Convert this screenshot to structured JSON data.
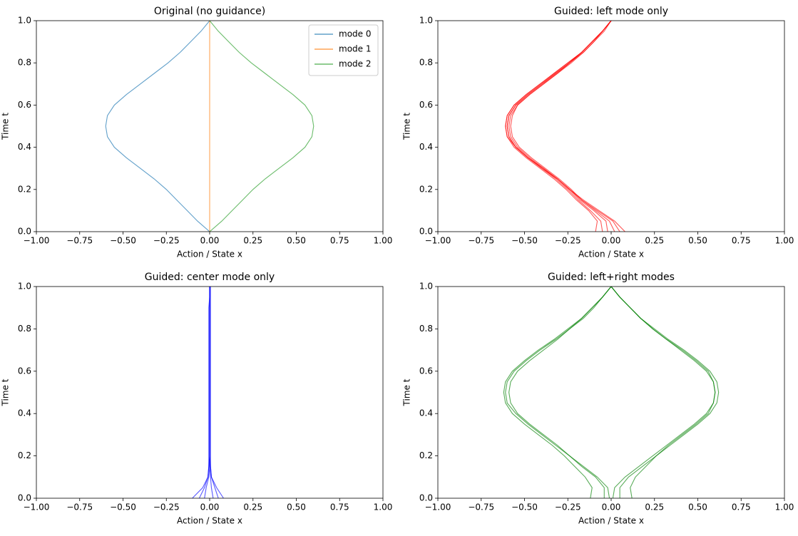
{
  "chart_data": [
    {
      "type": "line",
      "title": "Original (no guidance)",
      "xlabel": "Action / State x",
      "ylabel": "Time t",
      "xlim": [
        -1,
        1
      ],
      "ylim": [
        0,
        1
      ],
      "xticks": [
        {
          "value": -1,
          "label": "−1.00"
        },
        {
          "value": -0.75,
          "label": "−0.75"
        },
        {
          "value": -0.5,
          "label": "−0.50"
        },
        {
          "value": -0.25,
          "label": "−0.25"
        },
        {
          "value": 0,
          "label": "0.00"
        },
        {
          "value": 0.25,
          "label": "0.25"
        },
        {
          "value": 0.5,
          "label": "0.50"
        },
        {
          "value": 0.75,
          "label": "0.75"
        },
        {
          "value": 1,
          "label": "1.00"
        }
      ],
      "yticks": [
        {
          "value": 0,
          "label": "0.0"
        },
        {
          "value": 0.2,
          "label": "0.2"
        },
        {
          "value": 0.4,
          "label": "0.4"
        },
        {
          "value": 0.6,
          "label": "0.6"
        },
        {
          "value": 0.8,
          "label": "0.8"
        },
        {
          "value": 1,
          "label": "1.0"
        }
      ],
      "legend": "upper right",
      "y": [
        0,
        0.05,
        0.1,
        0.15,
        0.2,
        0.25,
        0.3,
        0.35,
        0.4,
        0.45,
        0.5,
        0.55,
        0.6,
        0.65,
        0.7,
        0.75,
        0.8,
        0.85,
        0.9,
        0.95,
        1
      ],
      "series": [
        {
          "name": "mode 0",
          "color": "#1f77b4",
          "x": [
            0,
            -0.07,
            -0.13,
            -0.19,
            -0.25,
            -0.32,
            -0.4,
            -0.48,
            -0.55,
            -0.59,
            -0.6,
            -0.59,
            -0.55,
            -0.48,
            -0.4,
            -0.32,
            -0.24,
            -0.17,
            -0.11,
            -0.05,
            0
          ]
        },
        {
          "name": "mode 1",
          "color": "#ff7f0e",
          "x": [
            0,
            0,
            0,
            0,
            0,
            0,
            0,
            0,
            0,
            0,
            0,
            0,
            0,
            0,
            0,
            0,
            0,
            0,
            0,
            0,
            0
          ]
        },
        {
          "name": "mode 2",
          "color": "#2ca02c",
          "x": [
            0,
            0.07,
            0.13,
            0.19,
            0.25,
            0.32,
            0.4,
            0.48,
            0.55,
            0.59,
            0.6,
            0.59,
            0.55,
            0.48,
            0.4,
            0.32,
            0.24,
            0.17,
            0.11,
            0.05,
            0
          ]
        }
      ]
    },
    {
      "type": "line",
      "title": "Guided: left mode only",
      "xlabel": "Action / State x",
      "ylabel": "Time t",
      "xlim": [
        -1,
        1
      ],
      "ylim": [
        0,
        1
      ],
      "color": "#ff0000",
      "xticks": [
        {
          "value": -1,
          "label": "−1.00"
        },
        {
          "value": -0.75,
          "label": "−0.75"
        },
        {
          "value": -0.5,
          "label": "−0.50"
        },
        {
          "value": -0.25,
          "label": "−0.25"
        },
        {
          "value": 0,
          "label": "0.00"
        },
        {
          "value": 0.25,
          "label": "0.25"
        },
        {
          "value": 0.5,
          "label": "0.50"
        },
        {
          "value": 0.75,
          "label": "0.75"
        },
        {
          "value": 1,
          "label": "1.00"
        }
      ],
      "yticks": [
        {
          "value": 0,
          "label": "0.0"
        },
        {
          "value": 0.2,
          "label": "0.2"
        },
        {
          "value": 0.4,
          "label": "0.4"
        },
        {
          "value": 0.6,
          "label": "0.6"
        },
        {
          "value": 0.8,
          "label": "0.8"
        },
        {
          "value": 1,
          "label": "1.0"
        }
      ],
      "y": [
        0,
        0.05,
        0.1,
        0.15,
        0.2,
        0.25,
        0.3,
        0.35,
        0.4,
        0.45,
        0.5,
        0.55,
        0.6,
        0.65,
        0.7,
        0.75,
        0.8,
        0.85,
        0.9,
        0.95,
        1
      ],
      "series": [
        {
          "x": [
            -0.09,
            -0.08,
            -0.13,
            -0.2,
            -0.26,
            -0.33,
            -0.41,
            -0.49,
            -0.56,
            -0.6,
            -0.61,
            -0.6,
            -0.56,
            -0.49,
            -0.41,
            -0.33,
            -0.25,
            -0.17,
            -0.11,
            -0.05,
            0
          ]
        },
        {
          "x": [
            -0.05,
            -0.06,
            -0.12,
            -0.19,
            -0.25,
            -0.32,
            -0.4,
            -0.48,
            -0.55,
            -0.59,
            -0.6,
            -0.59,
            -0.55,
            -0.48,
            -0.4,
            -0.32,
            -0.24,
            -0.17,
            -0.11,
            -0.05,
            0
          ]
        },
        {
          "x": [
            -0.02,
            -0.03,
            -0.1,
            -0.18,
            -0.24,
            -0.31,
            -0.39,
            -0.47,
            -0.54,
            -0.58,
            -0.59,
            -0.58,
            -0.54,
            -0.47,
            -0.39,
            -0.31,
            -0.24,
            -0.16,
            -0.1,
            -0.05,
            0
          ]
        },
        {
          "x": [
            0.02,
            -0.01,
            -0.09,
            -0.17,
            -0.24,
            -0.31,
            -0.39,
            -0.48,
            -0.55,
            -0.59,
            -0.6,
            -0.59,
            -0.55,
            -0.48,
            -0.4,
            -0.32,
            -0.24,
            -0.17,
            -0.11,
            -0.05,
            0
          ]
        },
        {
          "x": [
            0.05,
            0.01,
            -0.08,
            -0.17,
            -0.23,
            -0.3,
            -0.38,
            -0.46,
            -0.53,
            -0.57,
            -0.58,
            -0.57,
            -0.54,
            -0.47,
            -0.39,
            -0.31,
            -0.23,
            -0.16,
            -0.1,
            -0.04,
            0
          ]
        },
        {
          "x": [
            0.08,
            0.02,
            -0.07,
            -0.16,
            -0.24,
            -0.31,
            -0.4,
            -0.48,
            -0.55,
            -0.6,
            -0.61,
            -0.6,
            -0.56,
            -0.49,
            -0.41,
            -0.33,
            -0.25,
            -0.17,
            -0.11,
            -0.05,
            0
          ]
        }
      ]
    },
    {
      "type": "line",
      "title": "Guided: center mode only",
      "xlabel": "Action / State x",
      "ylabel": "Time t",
      "xlim": [
        -1,
        1
      ],
      "ylim": [
        0,
        1
      ],
      "color": "#0000ff",
      "xticks": [
        {
          "value": -1,
          "label": "−1.00"
        },
        {
          "value": -0.75,
          "label": "−0.75"
        },
        {
          "value": -0.5,
          "label": "−0.50"
        },
        {
          "value": -0.25,
          "label": "−0.25"
        },
        {
          "value": 0,
          "label": "0.00"
        },
        {
          "value": 0.25,
          "label": "0.25"
        },
        {
          "value": 0.5,
          "label": "0.50"
        },
        {
          "value": 0.75,
          "label": "0.75"
        },
        {
          "value": 1,
          "label": "1.00"
        }
      ],
      "yticks": [
        {
          "value": 0,
          "label": "0.0"
        },
        {
          "value": 0.2,
          "label": "0.2"
        },
        {
          "value": 0.4,
          "label": "0.4"
        },
        {
          "value": 0.6,
          "label": "0.6"
        },
        {
          "value": 0.8,
          "label": "0.8"
        },
        {
          "value": 1,
          "label": "1.0"
        }
      ],
      "y": [
        0,
        0.05,
        0.1,
        0.15,
        0.2,
        0.25,
        0.3,
        0.35,
        0.4,
        0.45,
        0.5,
        0.55,
        0.6,
        0.65,
        0.7,
        0.75,
        0.8,
        0.85,
        0.9,
        0.95,
        1
      ],
      "series": [
        {
          "x": [
            -0.1,
            -0.04,
            -0.01,
            -0.005,
            -0.005,
            -0.005,
            -0.005,
            -0.005,
            -0.005,
            -0.005,
            -0.005,
            -0.005,
            -0.005,
            -0.005,
            -0.005,
            -0.005,
            -0.005,
            -0.005,
            -0.005,
            0,
            0
          ]
        },
        {
          "x": [
            -0.06,
            -0.03,
            -0.01,
            -0.005,
            0,
            0,
            0,
            0,
            0,
            0,
            0,
            0,
            0,
            0,
            0,
            0,
            0,
            0,
            0,
            0,
            0
          ]
        },
        {
          "x": [
            -0.03,
            -0.02,
            -0.005,
            0,
            0,
            0,
            0,
            0,
            0,
            0,
            0,
            0,
            0,
            0,
            0,
            0,
            0,
            0,
            0,
            0,
            0
          ]
        },
        {
          "x": [
            0.02,
            0.01,
            0.005,
            0,
            0,
            0,
            0,
            0,
            0,
            0,
            0,
            0,
            0,
            0,
            0,
            0,
            0,
            0,
            0,
            0,
            0
          ]
        },
        {
          "x": [
            0.05,
            0.03,
            0.01,
            0.005,
            0.005,
            0.005,
            0.005,
            0.005,
            0.005,
            0.005,
            0.005,
            0.005,
            0.005,
            0.005,
            0.005,
            0.005,
            0.005,
            0.005,
            0.005,
            0.005,
            0.005
          ]
        },
        {
          "x": [
            0.08,
            0.04,
            0.01,
            0.005,
            0,
            0,
            0,
            0,
            0,
            0,
            0,
            0,
            0,
            0,
            0,
            0,
            0,
            0,
            0,
            0,
            0
          ]
        }
      ]
    },
    {
      "type": "line",
      "title": "Guided: left+right modes",
      "xlabel": "Action / State x",
      "ylabel": "Time t",
      "xlim": [
        -1,
        1
      ],
      "ylim": [
        0,
        1
      ],
      "color": "#008000",
      "xticks": [
        {
          "value": -1,
          "label": "−1.00"
        },
        {
          "value": -0.75,
          "label": "−0.75"
        },
        {
          "value": -0.5,
          "label": "−0.50"
        },
        {
          "value": -0.25,
          "label": "−0.25"
        },
        {
          "value": 0,
          "label": "0.00"
        },
        {
          "value": 0.25,
          "label": "0.25"
        },
        {
          "value": 0.5,
          "label": "0.50"
        },
        {
          "value": 0.75,
          "label": "0.75"
        },
        {
          "value": 1,
          "label": "1.00"
        }
      ],
      "yticks": [
        {
          "value": 0,
          "label": "0.0"
        },
        {
          "value": 0.2,
          "label": "0.2"
        },
        {
          "value": 0.4,
          "label": "0.4"
        },
        {
          "value": 0.6,
          "label": "0.6"
        },
        {
          "value": 0.8,
          "label": "0.8"
        },
        {
          "value": 1,
          "label": "1.0"
        }
      ],
      "y": [
        0,
        0.05,
        0.1,
        0.15,
        0.2,
        0.25,
        0.3,
        0.35,
        0.4,
        0.45,
        0.5,
        0.55,
        0.6,
        0.65,
        0.7,
        0.75,
        0.8,
        0.85,
        0.9,
        0.95,
        1
      ],
      "series": [
        {
          "x": [
            -0.12,
            -0.11,
            -0.15,
            -0.21,
            -0.27,
            -0.34,
            -0.42,
            -0.5,
            -0.57,
            -0.61,
            -0.62,
            -0.61,
            -0.57,
            -0.5,
            -0.42,
            -0.33,
            -0.25,
            -0.17,
            -0.11,
            -0.05,
            0
          ]
        },
        {
          "x": [
            -0.04,
            -0.04,
            -0.09,
            -0.17,
            -0.24,
            -0.31,
            -0.39,
            -0.47,
            -0.54,
            -0.58,
            -0.59,
            -0.58,
            -0.54,
            -0.47,
            -0.39,
            -0.31,
            -0.24,
            -0.16,
            -0.1,
            -0.05,
            0
          ]
        },
        {
          "x": [
            -0.01,
            -0.02,
            -0.08,
            -0.16,
            -0.24,
            -0.32,
            -0.4,
            -0.48,
            -0.55,
            -0.6,
            -0.61,
            -0.6,
            -0.56,
            -0.49,
            -0.41,
            -0.32,
            -0.24,
            -0.17,
            -0.11,
            -0.05,
            0
          ]
        },
        {
          "x": [
            0.01,
            0.02,
            0.08,
            0.16,
            0.24,
            0.32,
            0.4,
            0.48,
            0.55,
            0.59,
            0.6,
            0.59,
            0.55,
            0.48,
            0.4,
            0.32,
            0.24,
            0.17,
            0.11,
            0.05,
            0
          ]
        },
        {
          "x": [
            0.05,
            0.05,
            0.1,
            0.18,
            0.26,
            0.34,
            0.42,
            0.5,
            0.57,
            0.61,
            0.62,
            0.61,
            0.57,
            0.5,
            0.42,
            0.33,
            0.25,
            0.17,
            0.11,
            0.05,
            0
          ]
        },
        {
          "x": [
            0.12,
            0.11,
            0.14,
            0.2,
            0.26,
            0.33,
            0.41,
            0.49,
            0.56,
            0.59,
            0.6,
            0.59,
            0.56,
            0.49,
            0.41,
            0.32,
            0.24,
            0.17,
            0.11,
            0.05,
            0
          ]
        }
      ]
    }
  ]
}
